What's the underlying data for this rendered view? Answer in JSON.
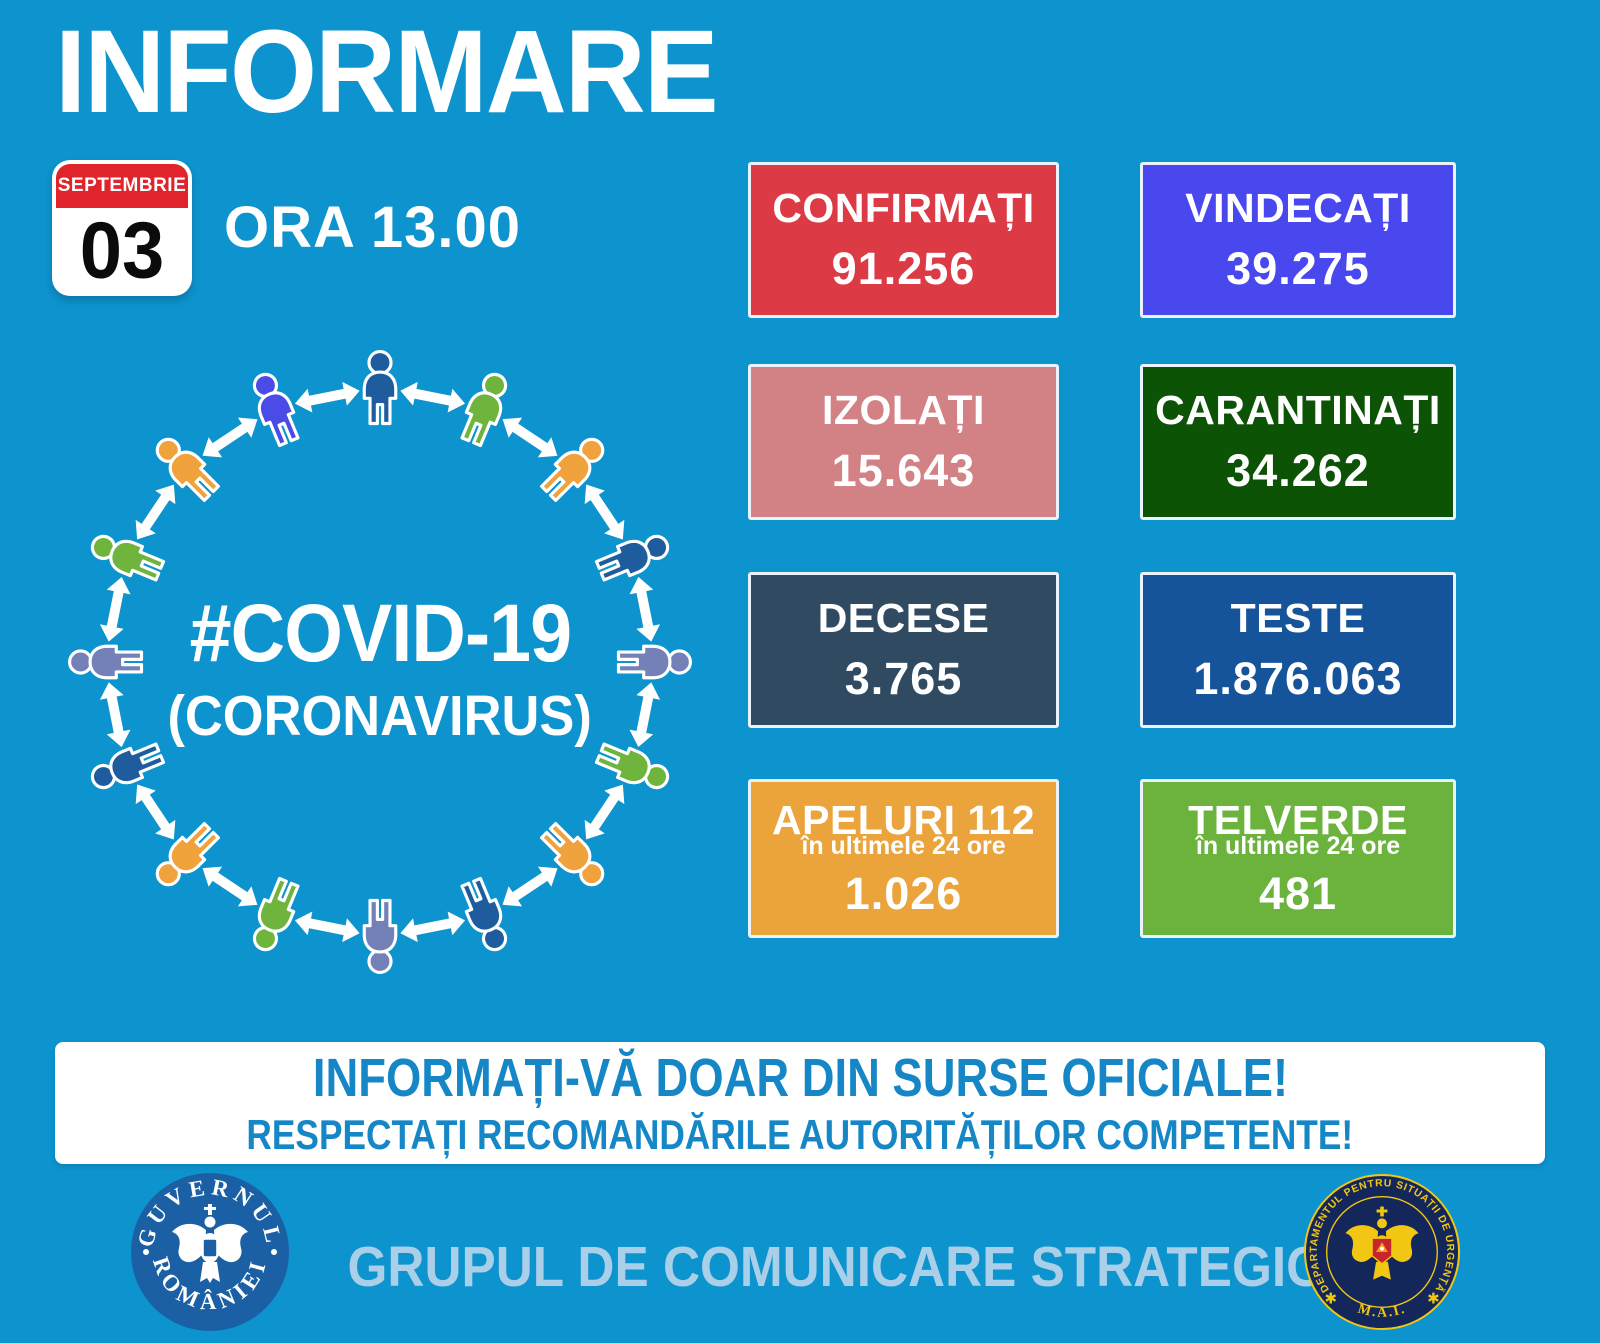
{
  "title": "INFORMARE",
  "date_badge": {
    "month": "SEPTEMBRIE",
    "day": "03"
  },
  "time_label": "ORA 13.00",
  "illustration": {
    "line1": "#COVID-19",
    "line2": "(CORONAVIRUS)",
    "person_colors": [
      "#1F5C9E",
      "#6FB43C",
      "#F0A23C",
      "#1F5C9E",
      "#7381B8",
      "#6FB43C",
      "#F0A23C",
      "#1F5C9E",
      "#7381B8",
      "#6FB43C",
      "#F0A23C",
      "#1F5C9E",
      "#7381B8",
      "#6FB43C",
      "#F0A23C",
      "#4B4BE8"
    ],
    "arrow_color": "#FFFFFF"
  },
  "stats": [
    {
      "label": "CONFIRMAȚI",
      "value": "91.256",
      "bg": "#DC3B45"
    },
    {
      "label": "VINDECAȚI",
      "value": "39.275",
      "bg": "#4848EE"
    },
    {
      "label": "IZOLAȚI",
      "value": "15.643",
      "bg": "#D28184"
    },
    {
      "label": "CARANTINAȚI",
      "value": "34.262",
      "bg": "#0D5306"
    },
    {
      "label": "DECESE",
      "value": "3.765",
      "bg": "#304B61"
    },
    {
      "label": "TESTE",
      "value": "1.876.063",
      "bg": "#15549A"
    },
    {
      "label": "APELURI 112",
      "sub": "în ultimele 24 ore",
      "value": "1.026",
      "bg": "#EBA33C"
    },
    {
      "label": "TELVERDE",
      "sub": "în ultimele 24 ore",
      "value": "481",
      "bg": "#6CB33E"
    }
  ],
  "banner": {
    "line1": "INFORMAȚI-VĂ DOAR DIN SURSE OFICIALE!",
    "line2": "RESPECTAȚI RECOMANDĂRILE AUTORITĂȚILOR COMPETENTE!"
  },
  "footer": {
    "gov_logo": {
      "top_text": "GUVERNUL",
      "bottom_text": "ROMÂNIEI"
    },
    "center_text": "GRUPUL DE COMUNICARE STRATEGICĂ",
    "dsu_logo": {
      "ring_text": "DEPARTAMENTUL PENTRU SITUAȚII DE URGENȚĂ",
      "bottom_text": "M.A.I.",
      "star": "✱"
    }
  },
  "colors": {
    "background": "#0D93CD",
    "banner_text": "#1587C6",
    "footer_text": "#A9CFE9",
    "calendar_red": "#E0242C",
    "card_border": "#EAF3F9",
    "gov_blue": "#1B5FA5",
    "dsu_navy": "#14275B",
    "dsu_yellow": "#F2C713"
  }
}
